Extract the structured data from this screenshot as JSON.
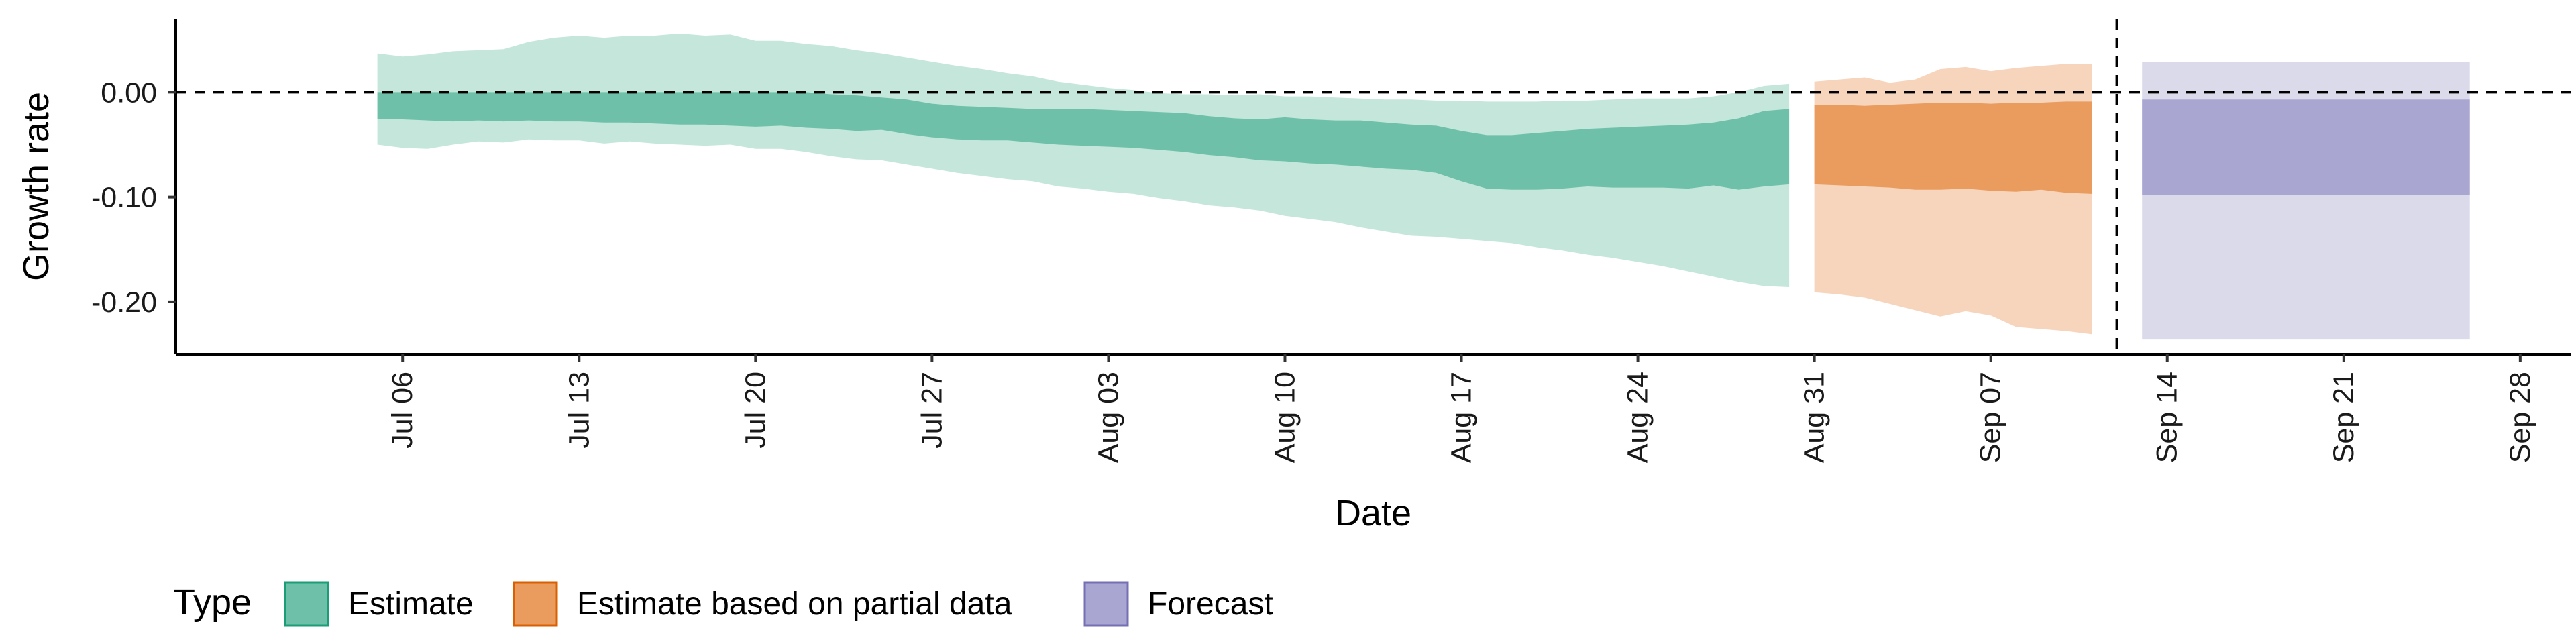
{
  "chart_data": {
    "type": "area",
    "xlabel": "Date",
    "ylabel": "Growth rate",
    "ylim": [
      -0.25,
      0.07
    ],
    "yticks": [
      0.0,
      -0.1,
      -0.2
    ],
    "ytick_labels": [
      "0.00",
      "-0.10",
      "-0.20"
    ],
    "xlim": [
      "2021-06-27",
      "2021-09-30"
    ],
    "xticks": [
      "2021-07-06",
      "2021-07-13",
      "2021-07-20",
      "2021-07-27",
      "2021-08-03",
      "2021-08-10",
      "2021-08-17",
      "2021-08-24",
      "2021-08-31",
      "2021-09-07",
      "2021-09-14",
      "2021-09-21",
      "2021-09-28"
    ],
    "xtick_labels": [
      "Jul 06",
      "Jul 13",
      "Jul 20",
      "Jul 27",
      "Aug 03",
      "Aug 10",
      "Aug 17",
      "Aug 24",
      "Aug 31",
      "Sep 07",
      "Sep 14",
      "Sep 21",
      "Sep 28"
    ],
    "hline": {
      "y": 0,
      "style": "dashed"
    },
    "vline": {
      "x": "2021-09-12",
      "style": "dashed"
    },
    "legend": {
      "title": "Type",
      "position": "bottom-left",
      "entries": [
        "Estimate",
        "Estimate based on partial data",
        "Forecast"
      ]
    },
    "series": [
      {
        "name": "Estimate",
        "color_inner": "#6EC1A8",
        "color_outer": "#C4E6DB",
        "points": [
          {
            "x": "2021-07-05",
            "lo90": -0.05,
            "lo50": -0.026,
            "hi50": 0.0,
            "hi90": 0.037
          },
          {
            "x": "2021-07-06",
            "lo90": -0.053,
            "lo50": -0.026,
            "hi50": 0.0,
            "hi90": 0.034
          },
          {
            "x": "2021-07-07",
            "lo90": -0.054,
            "lo50": -0.027,
            "hi50": 0.0,
            "hi90": 0.036
          },
          {
            "x": "2021-07-08",
            "lo90": -0.05,
            "lo50": -0.028,
            "hi50": 0.0,
            "hi90": 0.039
          },
          {
            "x": "2021-07-09",
            "lo90": -0.047,
            "lo50": -0.027,
            "hi50": 0.0,
            "hi90": 0.04
          },
          {
            "x": "2021-07-10",
            "lo90": -0.048,
            "lo50": -0.028,
            "hi50": 0.0,
            "hi90": 0.041
          },
          {
            "x": "2021-07-11",
            "lo90": -0.045,
            "lo50": -0.027,
            "hi50": 0.0,
            "hi90": 0.048
          },
          {
            "x": "2021-07-12",
            "lo90": -0.046,
            "lo50": -0.028,
            "hi50": 0.0,
            "hi90": 0.052
          },
          {
            "x": "2021-07-13",
            "lo90": -0.046,
            "lo50": -0.028,
            "hi50": 0.0,
            "hi90": 0.054
          },
          {
            "x": "2021-07-14",
            "lo90": -0.049,
            "lo50": -0.029,
            "hi50": 0.0,
            "hi90": 0.052
          },
          {
            "x": "2021-07-15",
            "lo90": -0.047,
            "lo50": -0.029,
            "hi50": 0.0,
            "hi90": 0.054
          },
          {
            "x": "2021-07-16",
            "lo90": -0.049,
            "lo50": -0.03,
            "hi50": 0.0,
            "hi90": 0.054
          },
          {
            "x": "2021-07-17",
            "lo90": -0.05,
            "lo50": -0.031,
            "hi50": 0.0,
            "hi90": 0.056
          },
          {
            "x": "2021-07-18",
            "lo90": -0.051,
            "lo50": -0.031,
            "hi50": 0.0,
            "hi90": 0.054
          },
          {
            "x": "2021-07-19",
            "lo90": -0.05,
            "lo50": -0.032,
            "hi50": 0.0,
            "hi90": 0.055
          },
          {
            "x": "2021-07-20",
            "lo90": -0.054,
            "lo50": -0.033,
            "hi50": 0.0,
            "hi90": 0.049
          },
          {
            "x": "2021-07-21",
            "lo90": -0.054,
            "lo50": -0.032,
            "hi50": 0.0,
            "hi90": 0.049
          },
          {
            "x": "2021-07-22",
            "lo90": -0.057,
            "lo50": -0.034,
            "hi50": 0.0,
            "hi90": 0.046
          },
          {
            "x": "2021-07-23",
            "lo90": -0.061,
            "lo50": -0.035,
            "hi50": -0.002,
            "hi90": 0.044
          },
          {
            "x": "2021-07-24",
            "lo90": -0.064,
            "lo50": -0.037,
            "hi50": -0.003,
            "hi90": 0.04
          },
          {
            "x": "2021-07-25",
            "lo90": -0.065,
            "lo50": -0.036,
            "hi50": -0.005,
            "hi90": 0.037
          },
          {
            "x": "2021-07-26",
            "lo90": -0.069,
            "lo50": -0.04,
            "hi50": -0.007,
            "hi90": 0.033
          },
          {
            "x": "2021-07-27",
            "lo90": -0.073,
            "lo50": -0.043,
            "hi50": -0.011,
            "hi90": 0.029
          },
          {
            "x": "2021-07-28",
            "lo90": -0.077,
            "lo50": -0.045,
            "hi50": -0.013,
            "hi90": 0.025
          },
          {
            "x": "2021-07-29",
            "lo90": -0.08,
            "lo50": -0.046,
            "hi50": -0.014,
            "hi90": 0.022
          },
          {
            "x": "2021-07-30",
            "lo90": -0.083,
            "lo50": -0.046,
            "hi50": -0.015,
            "hi90": 0.018
          },
          {
            "x": "2021-07-31",
            "lo90": -0.085,
            "lo50": -0.048,
            "hi50": -0.016,
            "hi90": 0.015
          },
          {
            "x": "2021-08-01",
            "lo90": -0.09,
            "lo50": -0.05,
            "hi50": -0.016,
            "hi90": 0.01
          },
          {
            "x": "2021-08-02",
            "lo90": -0.092,
            "lo50": -0.051,
            "hi50": -0.016,
            "hi90": 0.007
          },
          {
            "x": "2021-08-03",
            "lo90": -0.095,
            "lo50": -0.052,
            "hi50": -0.017,
            "hi90": 0.004
          },
          {
            "x": "2021-08-04",
            "lo90": -0.097,
            "lo50": -0.053,
            "hi50": -0.018,
            "hi90": 0.002
          },
          {
            "x": "2021-08-05",
            "lo90": -0.101,
            "lo50": -0.055,
            "hi50": -0.019,
            "hi90": -0.001
          },
          {
            "x": "2021-08-06",
            "lo90": -0.104,
            "lo50": -0.057,
            "hi50": -0.02,
            "hi90": -0.002
          },
          {
            "x": "2021-08-07",
            "lo90": -0.108,
            "lo50": -0.06,
            "hi50": -0.023,
            "hi90": -0.002
          },
          {
            "x": "2021-08-08",
            "lo90": -0.11,
            "lo50": -0.062,
            "hi50": -0.025,
            "hi90": -0.003
          },
          {
            "x": "2021-08-09",
            "lo90": -0.113,
            "lo50": -0.065,
            "hi50": -0.026,
            "hi90": -0.002
          },
          {
            "x": "2021-08-10",
            "lo90": -0.118,
            "lo50": -0.066,
            "hi50": -0.024,
            "hi90": -0.004
          },
          {
            "x": "2021-08-11",
            "lo90": -0.121,
            "lo50": -0.068,
            "hi50": -0.026,
            "hi90": -0.004
          },
          {
            "x": "2021-08-12",
            "lo90": -0.124,
            "lo50": -0.069,
            "hi50": -0.027,
            "hi90": -0.005
          },
          {
            "x": "2021-08-13",
            "lo90": -0.129,
            "lo50": -0.071,
            "hi50": -0.027,
            "hi90": -0.006
          },
          {
            "x": "2021-08-14",
            "lo90": -0.133,
            "lo50": -0.073,
            "hi50": -0.029,
            "hi90": -0.007
          },
          {
            "x": "2021-08-15",
            "lo90": -0.137,
            "lo50": -0.074,
            "hi50": -0.031,
            "hi90": -0.007
          },
          {
            "x": "2021-08-16",
            "lo90": -0.138,
            "lo50": -0.077,
            "hi50": -0.032,
            "hi90": -0.008
          },
          {
            "x": "2021-08-17",
            "lo90": -0.14,
            "lo50": -0.085,
            "hi50": -0.037,
            "hi90": -0.008
          },
          {
            "x": "2021-08-18",
            "lo90": -0.142,
            "lo50": -0.092,
            "hi50": -0.041,
            "hi90": -0.009
          },
          {
            "x": "2021-08-19",
            "lo90": -0.144,
            "lo50": -0.093,
            "hi50": -0.041,
            "hi90": -0.009
          },
          {
            "x": "2021-08-20",
            "lo90": -0.148,
            "lo50": -0.093,
            "hi50": -0.039,
            "hi90": -0.009
          },
          {
            "x": "2021-08-21",
            "lo90": -0.151,
            "lo50": -0.092,
            "hi50": -0.037,
            "hi90": -0.008
          },
          {
            "x": "2021-08-22",
            "lo90": -0.155,
            "lo50": -0.09,
            "hi50": -0.035,
            "hi90": -0.008
          },
          {
            "x": "2021-08-23",
            "lo90": -0.158,
            "lo50": -0.091,
            "hi50": -0.034,
            "hi90": -0.007
          },
          {
            "x": "2021-08-24",
            "lo90": -0.162,
            "lo50": -0.091,
            "hi50": -0.033,
            "hi90": -0.006
          },
          {
            "x": "2021-08-25",
            "lo90": -0.166,
            "lo50": -0.091,
            "hi50": -0.032,
            "hi90": -0.006
          },
          {
            "x": "2021-08-26",
            "lo90": -0.171,
            "lo50": -0.092,
            "hi50": -0.031,
            "hi90": -0.006
          },
          {
            "x": "2021-08-27",
            "lo90": -0.176,
            "lo50": -0.089,
            "hi50": -0.029,
            "hi90": -0.004
          },
          {
            "x": "2021-08-28",
            "lo90": -0.181,
            "lo50": -0.093,
            "hi50": -0.025,
            "hi90": 0.0
          },
          {
            "x": "2021-08-29",
            "lo90": -0.185,
            "lo50": -0.09,
            "hi50": -0.018,
            "hi90": 0.006
          },
          {
            "x": "2021-08-30",
            "lo90": -0.186,
            "lo50": -0.088,
            "hi50": -0.016,
            "hi90": 0.008
          }
        ]
      },
      {
        "name": "Estimate based on partial data",
        "color_inner": "#E99C5E",
        "color_outer": "#F6D5BC",
        "points": [
          {
            "x": "2021-08-31",
            "lo90": -0.191,
            "lo50": -0.088,
            "hi50": -0.012,
            "hi90": 0.01
          },
          {
            "x": "2021-09-01",
            "lo90": -0.193,
            "lo50": -0.089,
            "hi50": -0.012,
            "hi90": 0.012
          },
          {
            "x": "2021-09-02",
            "lo90": -0.196,
            "lo50": -0.09,
            "hi50": -0.013,
            "hi90": 0.014
          },
          {
            "x": "2021-09-03",
            "lo90": -0.202,
            "lo50": -0.091,
            "hi50": -0.012,
            "hi90": 0.009
          },
          {
            "x": "2021-09-04",
            "lo90": -0.208,
            "lo50": -0.093,
            "hi50": -0.011,
            "hi90": 0.012
          },
          {
            "x": "2021-09-05",
            "lo90": -0.214,
            "lo50": -0.093,
            "hi50": -0.01,
            "hi90": 0.022
          },
          {
            "x": "2021-09-06",
            "lo90": -0.209,
            "lo50": -0.092,
            "hi50": -0.01,
            "hi90": 0.024
          },
          {
            "x": "2021-09-07",
            "lo90": -0.213,
            "lo50": -0.094,
            "hi50": -0.011,
            "hi90": 0.02
          },
          {
            "x": "2021-09-08",
            "lo90": -0.224,
            "lo50": -0.095,
            "hi50": -0.01,
            "hi90": 0.023
          },
          {
            "x": "2021-09-09",
            "lo90": -0.226,
            "lo50": -0.093,
            "hi50": -0.01,
            "hi90": 0.025
          },
          {
            "x": "2021-09-10",
            "lo90": -0.228,
            "lo50": -0.096,
            "hi50": -0.009,
            "hi90": 0.027
          },
          {
            "x": "2021-09-11",
            "lo90": -0.231,
            "lo50": -0.097,
            "hi50": -0.009,
            "hi90": 0.027
          }
        ]
      },
      {
        "name": "Forecast",
        "color_inner": "#A9A6D1",
        "color_outer": "#DADAEB",
        "points": [
          {
            "x": "2021-09-13",
            "lo90": -0.236,
            "lo50": -0.098,
            "hi50": -0.007,
            "hi90": 0.029
          },
          {
            "x": "2021-09-26",
            "lo90": -0.236,
            "lo50": -0.098,
            "hi50": -0.007,
            "hi90": 0.029
          }
        ]
      }
    ]
  }
}
